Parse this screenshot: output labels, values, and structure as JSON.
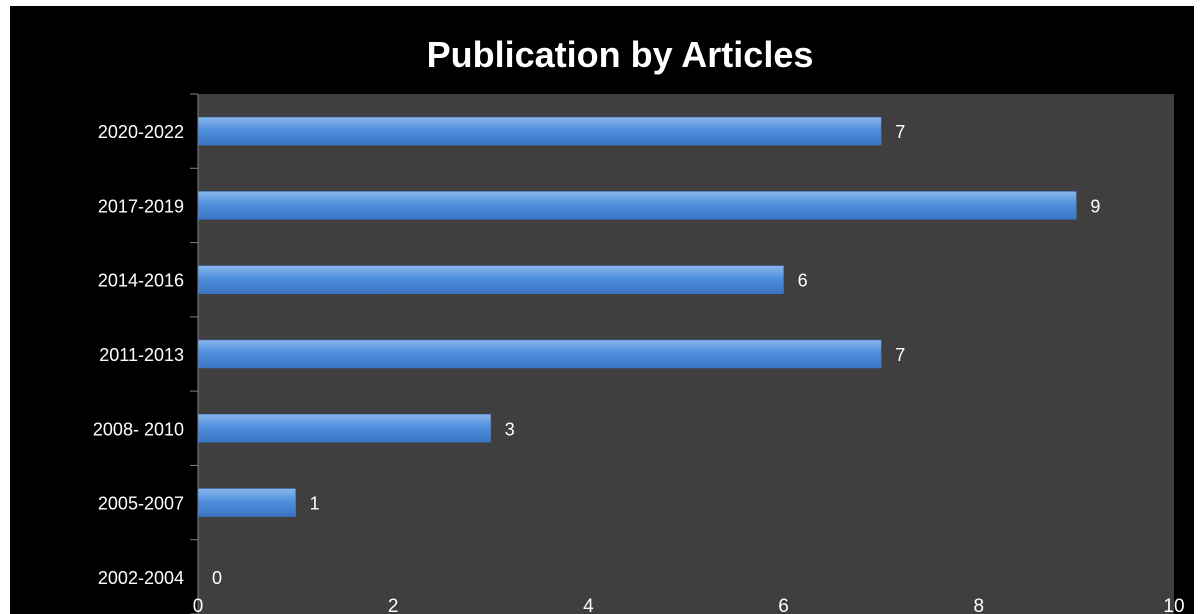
{
  "chart_data": {
    "type": "bar",
    "orientation": "horizontal",
    "title": "Publication by Articles",
    "categories": [
      "2020-2022",
      "2017-2019",
      "2014-2016",
      "2011-2013",
      "2008- 2010",
      "2005-2007",
      "2002-2004"
    ],
    "values": [
      7,
      9,
      6,
      7,
      3,
      1,
      0
    ],
    "data_labels": [
      "7",
      "9",
      "6",
      "7",
      "3",
      "1",
      "0"
    ],
    "xlim": [
      0,
      10
    ],
    "xticks": [
      "0",
      "2",
      "4",
      "6",
      "8",
      "10"
    ],
    "xlabel": "",
    "ylabel": "",
    "grid": false,
    "legend": "none",
    "colors": {
      "background": "#000000",
      "plot_area": "#3f3f3f",
      "bar": "#4f8fdc",
      "bar_light": "#8ab6ec",
      "bar_dark": "#3a75c4",
      "text": "#ffffff"
    }
  }
}
